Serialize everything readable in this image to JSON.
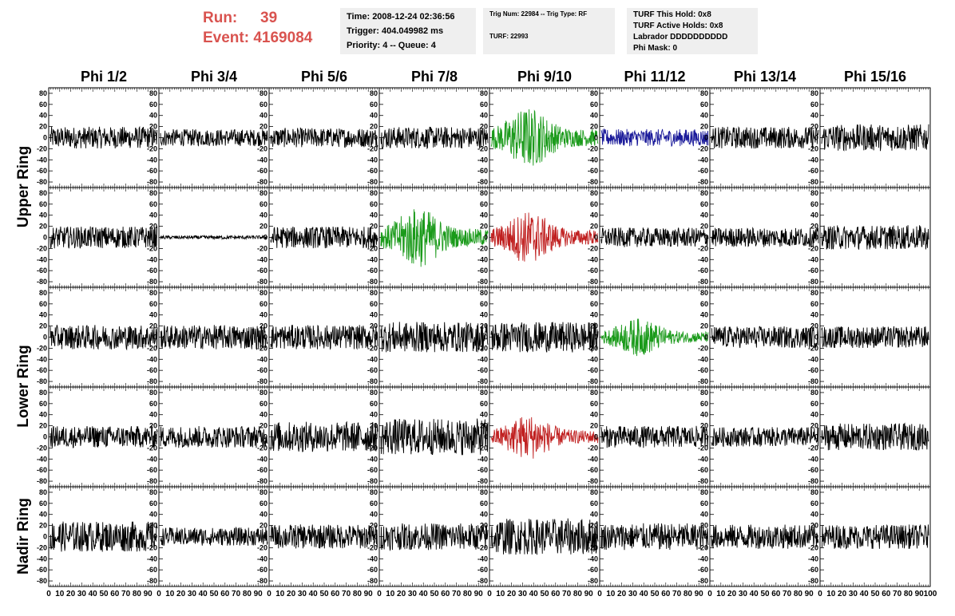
{
  "run": {
    "run_label": "Run:",
    "run_value": "39",
    "event_label": "Event:",
    "event_value": "4169084"
  },
  "header": {
    "time": "Time: 2008-12-24 02:36:56",
    "trigger": "Trigger: 404.049982 ms",
    "priority": "Priority: 4 -- Queue: 4",
    "trig_num": "Trig Num: 22984 -- Trig Type: RF",
    "turf": "TURF: 22993",
    "turf_hold": "TURF This Hold: 0x8",
    "turf_active": "TURF Active Holds: 0x8",
    "labrador": "Labrador DDDDDDDDDD",
    "phi_mask": "Phi Mask: 0"
  },
  "columns": [
    "Phi 1/2",
    "Phi 3/4",
    "Phi 5/6",
    "Phi 7/8",
    "Phi 9/10",
    "Phi 11/12",
    "Phi 13/14",
    "Phi 15/16"
  ],
  "ring_labels": [
    "Upper Ring",
    "Lower Ring",
    "Nadir Ring"
  ],
  "colors": {
    "run_text": "#d9534f",
    "black": "#000000",
    "green": "#1a9a1a",
    "blue": "#1a1a9a",
    "red": "#c02020",
    "info_bg": "#efefef"
  },
  "chart_data": {
    "type": "line",
    "description_of_grid": "5 rows x 8 columns of waveform panels",
    "xlim": [
      0,
      100
    ],
    "ylim": [
      -90,
      90
    ],
    "x_tick_labels": [
      "0",
      "10",
      "20",
      "30",
      "40",
      "50",
      "60",
      "70",
      "80",
      "90",
      "100"
    ],
    "y_tick_labels": [
      "80",
      "60",
      "40",
      "20",
      "0",
      "-20",
      "-40",
      "-60",
      "-80"
    ],
    "panels": [
      [
        {
          "color": "black",
          "amp": 18
        },
        {
          "color": "black",
          "amp": 14
        },
        {
          "color": "black",
          "amp": 16
        },
        {
          "color": "black",
          "amp": 18
        },
        {
          "color": "green",
          "amp": 40,
          "burst": true
        },
        {
          "color": "blue",
          "amp": 14
        },
        {
          "color": "black",
          "amp": 18
        },
        {
          "color": "black",
          "amp": 22
        }
      ],
      [
        {
          "color": "black",
          "amp": 18
        },
        {
          "color": "black",
          "amp": 3
        },
        {
          "color": "black",
          "amp": 18
        },
        {
          "color": "green",
          "amp": 40,
          "burst": true
        },
        {
          "color": "red",
          "amp": 35,
          "burst": true
        },
        {
          "color": "black",
          "amp": 16
        },
        {
          "color": "black",
          "amp": 16
        },
        {
          "color": "black",
          "amp": 20
        }
      ],
      [
        {
          "color": "black",
          "amp": 20
        },
        {
          "color": "black",
          "amp": 20
        },
        {
          "color": "black",
          "amp": 20
        },
        {
          "color": "black",
          "amp": 25
        },
        {
          "color": "black",
          "amp": 25
        },
        {
          "color": "green",
          "amp": 25,
          "burst": true
        },
        {
          "color": "black",
          "amp": 18
        },
        {
          "color": "black",
          "amp": 18
        }
      ],
      [
        {
          "color": "black",
          "amp": 18
        },
        {
          "color": "black",
          "amp": 18
        },
        {
          "color": "black",
          "amp": 25
        },
        {
          "color": "black",
          "amp": 30
        },
        {
          "color": "red",
          "amp": 30,
          "burst": true
        },
        {
          "color": "black",
          "amp": 18
        },
        {
          "color": "black",
          "amp": 16
        },
        {
          "color": "black",
          "amp": 22
        }
      ],
      [
        {
          "color": "black",
          "amp": 25
        },
        {
          "color": "black",
          "amp": 15
        },
        {
          "color": "black",
          "amp": 20
        },
        {
          "color": "black",
          "amp": 22
        },
        {
          "color": "black",
          "amp": 30
        },
        {
          "color": "black",
          "amp": 22
        },
        {
          "color": "black",
          "amp": 20
        },
        {
          "color": "black",
          "amp": 20
        }
      ]
    ]
  }
}
